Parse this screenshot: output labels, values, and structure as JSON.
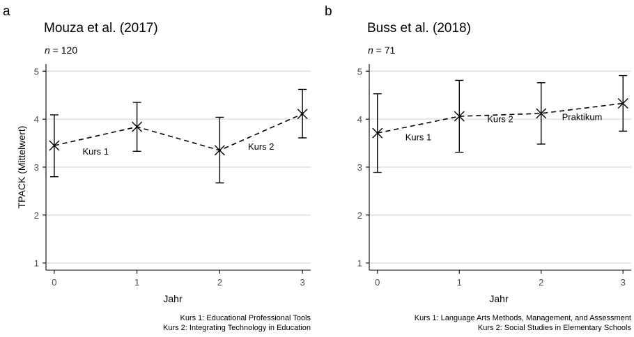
{
  "chart_data": [
    {
      "type": "line",
      "panel_label": "a",
      "title": "Mouza et al. (2017)",
      "subtitle_n": "n",
      "subtitle_rest": " = 120",
      "xlabel": "Jahr",
      "ylabel": "TPACK (Mittelwert)",
      "x": [
        0,
        1,
        2,
        3
      ],
      "y": [
        3.45,
        3.84,
        3.35,
        4.11
      ],
      "err_low": [
        2.8,
        3.33,
        2.67,
        3.61
      ],
      "err_high": [
        4.09,
        4.35,
        4.04,
        4.62
      ],
      "xlim": [
        -0.1,
        3.1
      ],
      "ylim": [
        0.85,
        5.15
      ],
      "yticks": [
        "1",
        "2",
        "3",
        "4",
        "5"
      ],
      "xticks": [
        "0",
        "1",
        "2",
        "3"
      ],
      "grid": true,
      "annotations": [
        {
          "text": "Kurs 1",
          "x": 0.5,
          "y": 3.26
        },
        {
          "text": "Kurs 2",
          "x": 2.5,
          "y": 3.36
        }
      ],
      "caption": [
        "Kurs 1: Educational Professional Tools",
        "Kurs 2: Integrating Technology in Education"
      ]
    },
    {
      "type": "line",
      "panel_label": "b",
      "title": "Buss et al. (2018)",
      "subtitle_n": "n",
      "subtitle_rest": " = 71",
      "xlabel": "Jahr",
      "ylabel": "",
      "x": [
        0,
        1,
        2,
        3
      ],
      "y": [
        3.71,
        4.06,
        4.12,
        4.33
      ],
      "err_low": [
        2.89,
        3.31,
        3.48,
        3.75
      ],
      "err_high": [
        4.53,
        4.81,
        4.76,
        4.91
      ],
      "xlim": [
        -0.1,
        3.1
      ],
      "ylim": [
        0.85,
        5.15
      ],
      "yticks": [
        "1",
        "2",
        "3",
        "4",
        "5"
      ],
      "xticks": [
        "0",
        "1",
        "2",
        "3"
      ],
      "grid": true,
      "annotations": [
        {
          "text": "Kurs 1",
          "x": 0.5,
          "y": 3.56
        },
        {
          "text": "Kurs 2",
          "x": 1.5,
          "y": 3.94
        },
        {
          "text": "Praktikum",
          "x": 2.5,
          "y": 3.98
        }
      ],
      "caption": [
        "Kurs 1: Language Arts Methods, Management, and Assessment",
        "Kurs 2: Social Studies in Elementary Schools"
      ]
    }
  ]
}
